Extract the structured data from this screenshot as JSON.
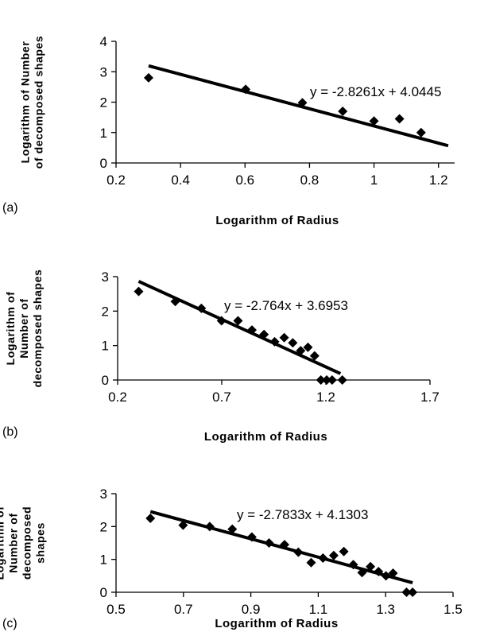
{
  "chart_data": [
    {
      "type": "scatter",
      "panel_label": "(a)",
      "xlabel": "Logarithm of Radius",
      "ylabel": [
        "Logarithm of Number",
        "of decomposed shapes"
      ],
      "xlim": [
        0.2,
        1.25
      ],
      "ylim": [
        0,
        4
      ],
      "xticks": [
        0.2,
        0.4,
        0.6,
        0.8,
        1,
        1.2
      ],
      "xtick_labels": [
        "0.2",
        "0.4",
        "0.6",
        "0.8",
        "1",
        "1.2"
      ],
      "yticks": [
        0,
        1,
        2,
        3,
        4
      ],
      "ytick_labels": [
        "0",
        "1",
        "2",
        "3",
        "4"
      ],
      "equation": "y = -2.8261x + 4.0445",
      "trendline": {
        "slope": -2.8261,
        "intercept": 4.0445,
        "x_start": 0.301,
        "x_end": 1.23
      },
      "points": [
        {
          "x": 0.301,
          "y": 2.8
        },
        {
          "x": 0.602,
          "y": 2.42
        },
        {
          "x": 0.778,
          "y": 1.98
        },
        {
          "x": 0.903,
          "y": 1.7
        },
        {
          "x": 1.0,
          "y": 1.38
        },
        {
          "x": 1.079,
          "y": 1.45
        },
        {
          "x": 1.146,
          "y": 1.0
        }
      ]
    },
    {
      "type": "scatter",
      "panel_label": "(b)",
      "xlabel": "Logarithm of Radius",
      "ylabel": [
        "Logarithm of",
        "Number of",
        "decomposed shapes"
      ],
      "xlim": [
        0.2,
        1.7
      ],
      "ylim": [
        0,
        3
      ],
      "xticks": [
        0.2,
        0.7,
        1.2,
        1.7
      ],
      "xtick_labels": [
        "0.2",
        "0.7",
        "1.2",
        "1.7"
      ],
      "yticks": [
        0,
        1,
        2,
        3
      ],
      "ytick_labels": [
        "0",
        "1",
        "2",
        "3"
      ],
      "equation": "y = -2.764x + 3.6953",
      "trendline": {
        "slope": -2.764,
        "intercept": 3.6953,
        "x_start": 0.301,
        "x_end": 1.27
      },
      "points": [
        {
          "x": 0.301,
          "y": 2.57
        },
        {
          "x": 0.477,
          "y": 2.28
        },
        {
          "x": 0.602,
          "y": 2.08
        },
        {
          "x": 0.699,
          "y": 1.72
        },
        {
          "x": 0.778,
          "y": 1.72
        },
        {
          "x": 0.845,
          "y": 1.45
        },
        {
          "x": 0.903,
          "y": 1.32
        },
        {
          "x": 0.954,
          "y": 1.11
        },
        {
          "x": 1.0,
          "y": 1.23
        },
        {
          "x": 1.041,
          "y": 1.08
        },
        {
          "x": 1.079,
          "y": 0.85
        },
        {
          "x": 1.114,
          "y": 0.95
        },
        {
          "x": 1.146,
          "y": 0.7
        },
        {
          "x": 1.176,
          "y": 0.0
        },
        {
          "x": 1.204,
          "y": 0.0
        },
        {
          "x": 1.23,
          "y": 0.0
        },
        {
          "x": 1.279,
          "y": 0.0
        }
      ]
    },
    {
      "type": "scatter",
      "panel_label": "(c)",
      "xlabel": "Logarithm of Radius",
      "ylabel": [
        "Logarithm of",
        "Number of",
        "decomposed",
        "shapes"
      ],
      "xlim": [
        0.5,
        1.5
      ],
      "ylim": [
        0,
        3
      ],
      "xticks": [
        0.5,
        0.7,
        0.9,
        1.1,
        1.3,
        1.5
      ],
      "xtick_labels": [
        "0.5",
        "0.7",
        "0.9",
        "1.1",
        "1.3",
        "1.5"
      ],
      "yticks": [
        0,
        1,
        2,
        3
      ],
      "ytick_labels": [
        "0",
        "1",
        "2",
        "3"
      ],
      "equation": "y = -2.7833x + 4.1303",
      "trendline": {
        "slope": -2.7833,
        "intercept": 4.1303,
        "x_start": 0.602,
        "x_end": 1.38
      },
      "points": [
        {
          "x": 0.602,
          "y": 2.25
        },
        {
          "x": 0.699,
          "y": 2.04
        },
        {
          "x": 0.778,
          "y": 2.0
        },
        {
          "x": 0.845,
          "y": 1.92
        },
        {
          "x": 0.903,
          "y": 1.68
        },
        {
          "x": 0.954,
          "y": 1.5
        },
        {
          "x": 1.0,
          "y": 1.45
        },
        {
          "x": 1.041,
          "y": 1.22
        },
        {
          "x": 1.079,
          "y": 0.9
        },
        {
          "x": 1.114,
          "y": 1.04
        },
        {
          "x": 1.146,
          "y": 1.12
        },
        {
          "x": 1.176,
          "y": 1.24
        },
        {
          "x": 1.204,
          "y": 0.84
        },
        {
          "x": 1.23,
          "y": 0.6
        },
        {
          "x": 1.255,
          "y": 0.78
        },
        {
          "x": 1.279,
          "y": 0.63
        },
        {
          "x": 1.301,
          "y": 0.5
        },
        {
          "x": 1.322,
          "y": 0.58
        },
        {
          "x": 1.362,
          "y": 0.0
        },
        {
          "x": 1.38,
          "y": 0.0
        }
      ]
    }
  ]
}
